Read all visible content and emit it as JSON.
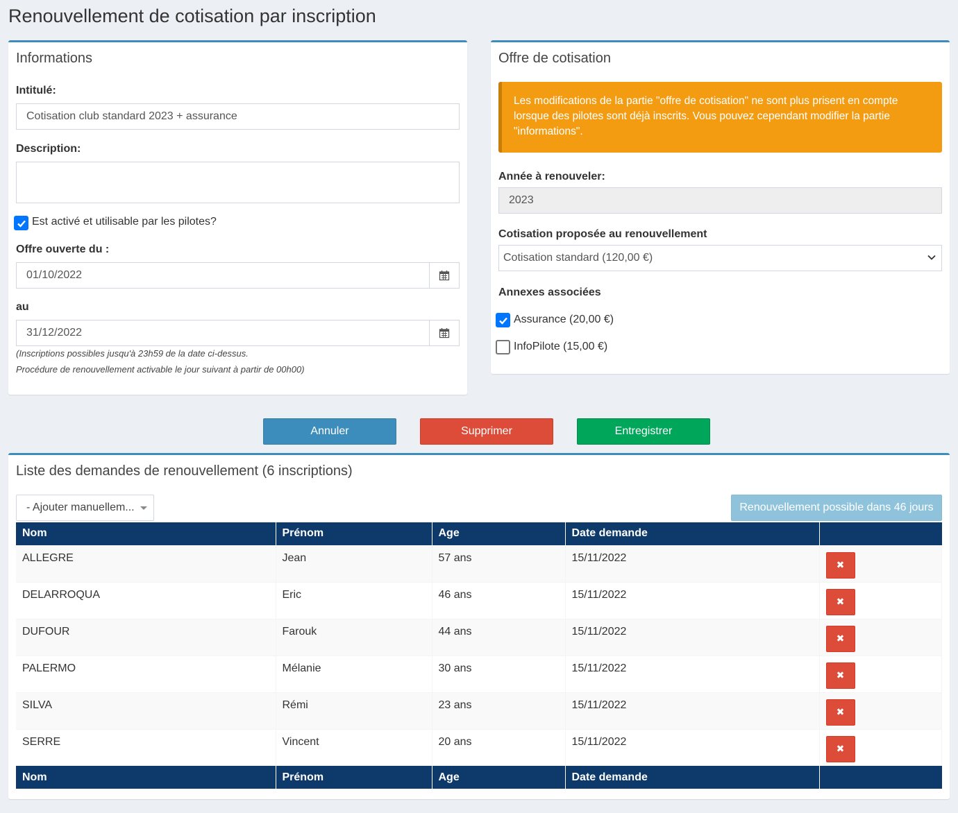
{
  "page_title": "Renouvellement de cotisation par inscription",
  "informations": {
    "title": "Informations",
    "intitule_label": "Intitulé:",
    "intitule_value": "Cotisation club standard 2023 + assurance",
    "description_label": "Description:",
    "description_value": "",
    "active_label": "Est activé et utilisable par les pilotes?",
    "active_checked": true,
    "open_from_label": "Offre ouverte du :",
    "open_from_value": "01/10/2022",
    "to_label": "au",
    "to_value": "31/12/2022",
    "hint_line1": "(Inscriptions possibles jusqu'à 23h59 de la date ci-dessus.",
    "hint_line2": "Procédure de renouvellement activable le jour suivant à partir de 00h00)"
  },
  "offre": {
    "title": "Offre de cotisation",
    "alert_text": "Les modifications de la partie \"offre de cotisation\" ne sont plus prisent en compte lorsque des pilotes sont déjà inscrits. Vous pouvez cependant modifier la partie \"informations\".",
    "year_label": "Année à renouveler:",
    "year_value": "2023",
    "cotisation_label": "Cotisation proposée au renouvellement",
    "cotisation_value": "Cotisation standard (120,00 €)",
    "annexes_label": "Annexes associées",
    "annexes": [
      {
        "label": "Assurance (20,00 €)",
        "checked": true
      },
      {
        "label": "InfoPilote (15,00 €)",
        "checked": false
      }
    ]
  },
  "actions": {
    "cancel": "Annuler",
    "delete": "Supprimer",
    "save": "Entregistrer"
  },
  "list": {
    "title": "Liste des demandes de renouvellement (6 inscriptions)",
    "add_manual": "- Ajouter manuellem...",
    "renew_button": "Renouvellement possible dans 46 jours",
    "columns": [
      "Nom",
      "Prénom",
      "Age",
      "Date demande",
      ""
    ],
    "rows": [
      {
        "nom": "ALLEGRE",
        "prenom": "Jean",
        "age": "57 ans",
        "date": "15/11/2022"
      },
      {
        "nom": "DELARROQUA",
        "prenom": "Eric",
        "age": "46 ans",
        "date": "15/11/2022"
      },
      {
        "nom": "DUFOUR",
        "prenom": "Farouk",
        "age": "44 ans",
        "date": "15/11/2022"
      },
      {
        "nom": "PALERMO",
        "prenom": "Mélanie",
        "age": "30 ans",
        "date": "15/11/2022"
      },
      {
        "nom": "SILVA",
        "prenom": "Rémi",
        "age": "23 ans",
        "date": "15/11/2022"
      },
      {
        "nom": "SERRE",
        "prenom": "Vincent",
        "age": "20 ans",
        "date": "15/11/2022"
      }
    ]
  },
  "colors": {
    "primary": "#3c8dbc",
    "danger": "#dd4b39",
    "success": "#00a65a",
    "warning": "#f39c12",
    "table_header": "#0d3a6b"
  }
}
